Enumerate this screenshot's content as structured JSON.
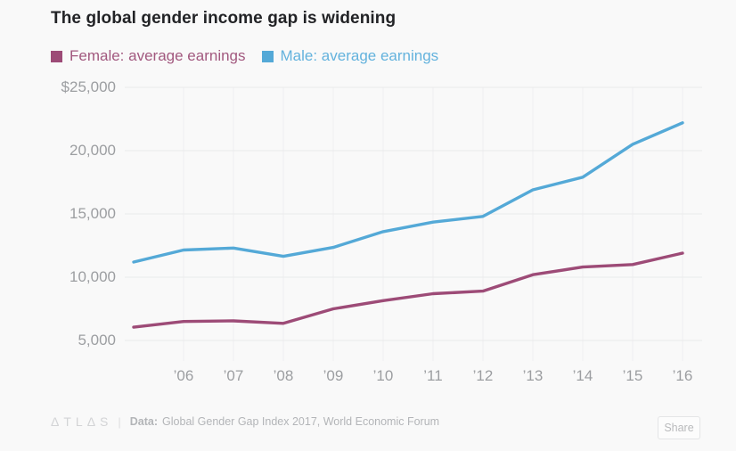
{
  "title": "The global gender income gap is widening",
  "legend": [
    {
      "label": "Female: average earnings",
      "color": "#9d4b77",
      "text_color": "#a2597f"
    },
    {
      "label": "Male: average earnings",
      "color": "#54a9d7",
      "text_color": "#63b2dd"
    }
  ],
  "chart_data": {
    "type": "line",
    "x": [
      2005,
      2006,
      2007,
      2008,
      2009,
      2010,
      2011,
      2012,
      2013,
      2014,
      2015,
      2016
    ],
    "series": [
      {
        "name": "Male: average earnings",
        "color": "#54a9d7",
        "values": [
          11200,
          12150,
          12300,
          11650,
          12350,
          13600,
          14350,
          14800,
          16900,
          17900,
          20500,
          22200
        ]
      },
      {
        "name": "Female: average earnings",
        "color": "#9d4b77",
        "values": [
          6050,
          6500,
          6550,
          6350,
          7500,
          8150,
          8700,
          8900,
          10200,
          10800,
          11000,
          11900
        ]
      }
    ],
    "title": "The global gender income gap is widening",
    "xlabel": "",
    "ylabel": "",
    "ylim": [
      5000,
      25000
    ],
    "grid": true,
    "legend_position": "top-left",
    "y_ticks": [
      25000,
      20000,
      15000,
      10000,
      5000
    ],
    "y_tick_labels": [
      "$25,000",
      "20,000",
      "15,000",
      "10,000",
      "5,000"
    ],
    "x_ticks": [
      2006,
      2007,
      2008,
      2009,
      2010,
      2011,
      2012,
      2013,
      2014,
      2015,
      2016
    ],
    "x_tick_labels": [
      "’06",
      "’07",
      "’08",
      "’09",
      "’10",
      "’11",
      "’12",
      "’13",
      "’14",
      "’15",
      "’16"
    ]
  },
  "footer": {
    "logo_text": "ΔTLΔS",
    "separator": "|",
    "data_label": "Data:",
    "source": "Global Gender Gap Index 2017, World Economic Forum",
    "share_label": "Share"
  },
  "colors": {
    "background": "#f9f9f9",
    "gridline": "#e9eaeb",
    "tick_text": "#9c9ea1",
    "title_text": "#222326"
  }
}
